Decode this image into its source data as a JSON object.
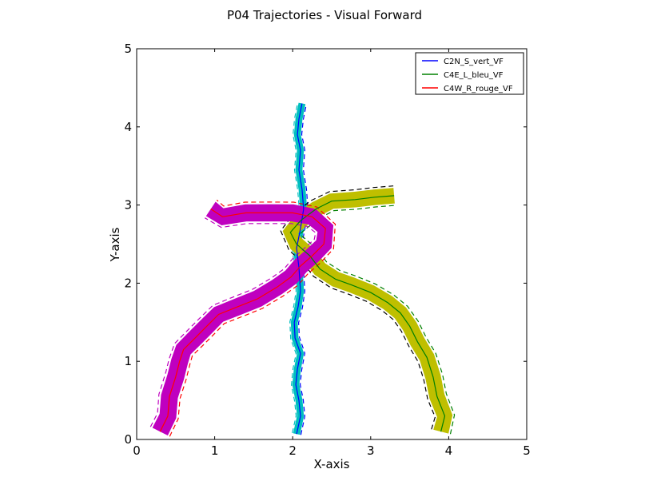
{
  "chart_data": {
    "type": "line",
    "title": "P04 Trajectories - Visual Forward",
    "xlabel": "X-axis",
    "ylabel": "Y-axis",
    "xlim": [
      0,
      5
    ],
    "ylim": [
      0,
      5
    ],
    "xticks": [
      "0",
      "1",
      "2",
      "3",
      "4",
      "5"
    ],
    "yticks": [
      "0",
      "1",
      "2",
      "3",
      "4",
      "5"
    ],
    "grid": false,
    "legend_position": "top-right",
    "series": [
      {
        "name": "C2N_S_vert_VF",
        "color": "#0000ff",
        "band_color": "#00bfbf",
        "band_edge_color": "#00bfbf",
        "half_width": 0.045,
        "points": [
          [
            2.05,
            0.07
          ],
          [
            2.1,
            0.3
          ],
          [
            2.08,
            0.5
          ],
          [
            2.04,
            0.7
          ],
          [
            2.06,
            0.9
          ],
          [
            2.1,
            1.1
          ],
          [
            2.03,
            1.3
          ],
          [
            2.02,
            1.5
          ],
          [
            2.07,
            1.7
          ],
          [
            2.1,
            1.9
          ],
          [
            2.08,
            2.2
          ],
          [
            2.05,
            2.45
          ],
          [
            2.1,
            2.7
          ],
          [
            2.14,
            2.95
          ],
          [
            2.12,
            3.2
          ],
          [
            2.08,
            3.45
          ],
          [
            2.1,
            3.7
          ],
          [
            2.06,
            3.9
          ],
          [
            2.08,
            4.1
          ],
          [
            2.12,
            4.3
          ]
        ]
      },
      {
        "name": "C4E_L_bleu_VF",
        "color": "#008000",
        "band_color": "#bfbf00",
        "band_edge_color": "#000000",
        "half_width": 0.1,
        "points": [
          [
            3.9,
            0.1
          ],
          [
            3.95,
            0.3
          ],
          [
            3.85,
            0.55
          ],
          [
            3.8,
            0.8
          ],
          [
            3.72,
            1.05
          ],
          [
            3.6,
            1.25
          ],
          [
            3.5,
            1.45
          ],
          [
            3.38,
            1.62
          ],
          [
            3.22,
            1.75
          ],
          [
            3.0,
            1.88
          ],
          [
            2.75,
            1.98
          ],
          [
            2.55,
            2.05
          ],
          [
            2.35,
            2.18
          ],
          [
            2.22,
            2.35
          ],
          [
            2.05,
            2.5
          ],
          [
            1.97,
            2.65
          ],
          [
            2.1,
            2.8
          ],
          [
            2.3,
            2.95
          ],
          [
            2.5,
            3.05
          ],
          [
            2.8,
            3.07
          ],
          [
            3.05,
            3.1
          ],
          [
            3.3,
            3.12
          ]
        ]
      },
      {
        "name": "C4W_R_rouge_VF",
        "color": "#ff0000",
        "band_color": "#bf00bf",
        "band_edge_color": "#bf00bf",
        "half_width": 0.11,
        "points": [
          [
            0.3,
            0.1
          ],
          [
            0.4,
            0.3
          ],
          [
            0.42,
            0.55
          ],
          [
            0.5,
            0.8
          ],
          [
            0.55,
            1.0
          ],
          [
            0.6,
            1.15
          ],
          [
            0.75,
            1.3
          ],
          [
            0.9,
            1.45
          ],
          [
            1.05,
            1.6
          ],
          [
            1.3,
            1.7
          ],
          [
            1.55,
            1.8
          ],
          [
            1.8,
            1.95
          ],
          [
            1.98,
            2.08
          ],
          [
            2.1,
            2.22
          ],
          [
            2.25,
            2.35
          ],
          [
            2.4,
            2.5
          ],
          [
            2.42,
            2.7
          ],
          [
            2.25,
            2.85
          ],
          [
            2.0,
            2.9
          ],
          [
            1.7,
            2.9
          ],
          [
            1.4,
            2.9
          ],
          [
            1.1,
            2.85
          ],
          [
            0.95,
            2.95
          ]
        ]
      }
    ]
  }
}
